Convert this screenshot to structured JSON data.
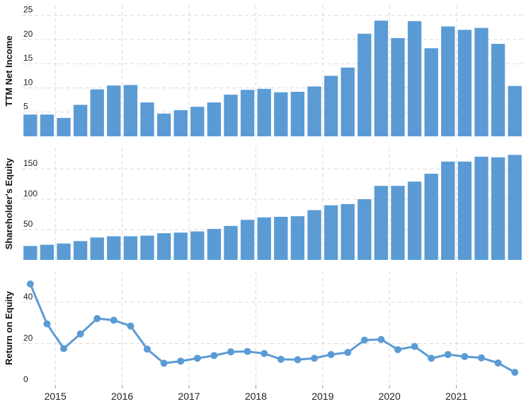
{
  "colors": {
    "bar": "#5b9bd5",
    "line": "#5b9bd5",
    "grid": "#d9d9d9",
    "text": "#222222"
  },
  "chart_data": [
    {
      "type": "bar",
      "ylabel": "TTM Net Income",
      "ylim": [
        0,
        27
      ],
      "yticks": [
        0,
        5,
        10,
        15,
        20,
        25
      ],
      "grid": true,
      "x": [
        "2014-Q3",
        "2014-Q4",
        "2015-Q1",
        "2015-Q2",
        "2015-Q3",
        "2015-Q4",
        "2016-Q1",
        "2016-Q2",
        "2016-Q3",
        "2016-Q4",
        "2017-Q1",
        "2017-Q2",
        "2017-Q3",
        "2017-Q4",
        "2018-Q1",
        "2018-Q2",
        "2018-Q3",
        "2018-Q4",
        "2019-Q1",
        "2019-Q2",
        "2019-Q3",
        "2019-Q4",
        "2020-Q1",
        "2020-Q2",
        "2020-Q3",
        "2020-Q4",
        "2021-Q1",
        "2021-Q2",
        "2021-Q3",
        "2021-Q4"
      ],
      "values": [
        4.5,
        4.5,
        3.8,
        6.5,
        9.7,
        10.5,
        10.6,
        7.0,
        4.7,
        5.4,
        6.1,
        7.0,
        8.6,
        9.6,
        9.8,
        9.1,
        9.2,
        10.3,
        12.5,
        14.2,
        21.2,
        23.9,
        20.3,
        23.8,
        18.2,
        22.7,
        22.0,
        22.4,
        19.1,
        10.4
      ]
    },
    {
      "type": "bar",
      "ylabel": "Shareholder's Equity",
      "ylim": [
        0,
        185
      ],
      "yticks": [
        0,
        50,
        100,
        150
      ],
      "grid": true,
      "x": [
        "2014-Q3",
        "2014-Q4",
        "2015-Q1",
        "2015-Q2",
        "2015-Q3",
        "2015-Q4",
        "2016-Q1",
        "2016-Q2",
        "2016-Q3",
        "2016-Q4",
        "2017-Q1",
        "2017-Q2",
        "2017-Q3",
        "2017-Q4",
        "2018-Q1",
        "2018-Q2",
        "2018-Q3",
        "2018-Q4",
        "2019-Q1",
        "2019-Q2",
        "2019-Q3",
        "2019-Q4",
        "2020-Q1",
        "2020-Q2",
        "2020-Q3",
        "2020-Q4",
        "2021-Q1",
        "2021-Q2",
        "2021-Q3",
        "2021-Q4"
      ],
      "values": [
        23,
        25,
        27,
        31,
        37,
        39,
        39,
        40,
        44,
        45,
        47,
        51,
        56,
        66,
        70,
        71,
        72,
        82,
        90,
        92,
        100,
        122,
        122,
        129,
        142,
        162,
        162,
        170,
        169,
        173
      ]
    },
    {
      "type": "line",
      "ylabel": "Return on Equity",
      "ylim": [
        0,
        55
      ],
      "yticks": [
        0,
        20,
        40
      ],
      "grid": true,
      "x": [
        "2014-Q3",
        "2014-Q4",
        "2015-Q1",
        "2015-Q2",
        "2015-Q3",
        "2015-Q4",
        "2016-Q1",
        "2016-Q2",
        "2016-Q3",
        "2016-Q4",
        "2017-Q1",
        "2017-Q2",
        "2017-Q3",
        "2017-Q4",
        "2018-Q1",
        "2018-Q2",
        "2018-Q3",
        "2018-Q4",
        "2019-Q1",
        "2019-Q2",
        "2019-Q3",
        "2019-Q4",
        "2020-Q1",
        "2020-Q2",
        "2020-Q3",
        "2020-Q4",
        "2021-Q1",
        "2021-Q2",
        "2021-Q3",
        "2021-Q4"
      ],
      "values": [
        48.8,
        29.5,
        17.6,
        24.7,
        32.1,
        31.3,
        28.5,
        17.3,
        10.5,
        11.5,
        12.9,
        14.2,
        16.0,
        16.2,
        15.2,
        12.4,
        12.2,
        12.9,
        14.7,
        15.7,
        21.7,
        22.0,
        17.1,
        18.6,
        12.9,
        14.7,
        13.7,
        13.1,
        10.6,
        6.1
      ]
    }
  ],
  "x_axis": {
    "labels": [
      "2015",
      "2016",
      "2017",
      "2018",
      "2019",
      "2020",
      "2021"
    ],
    "quarters_per_year": 4,
    "first_label_year_offset": 2
  }
}
